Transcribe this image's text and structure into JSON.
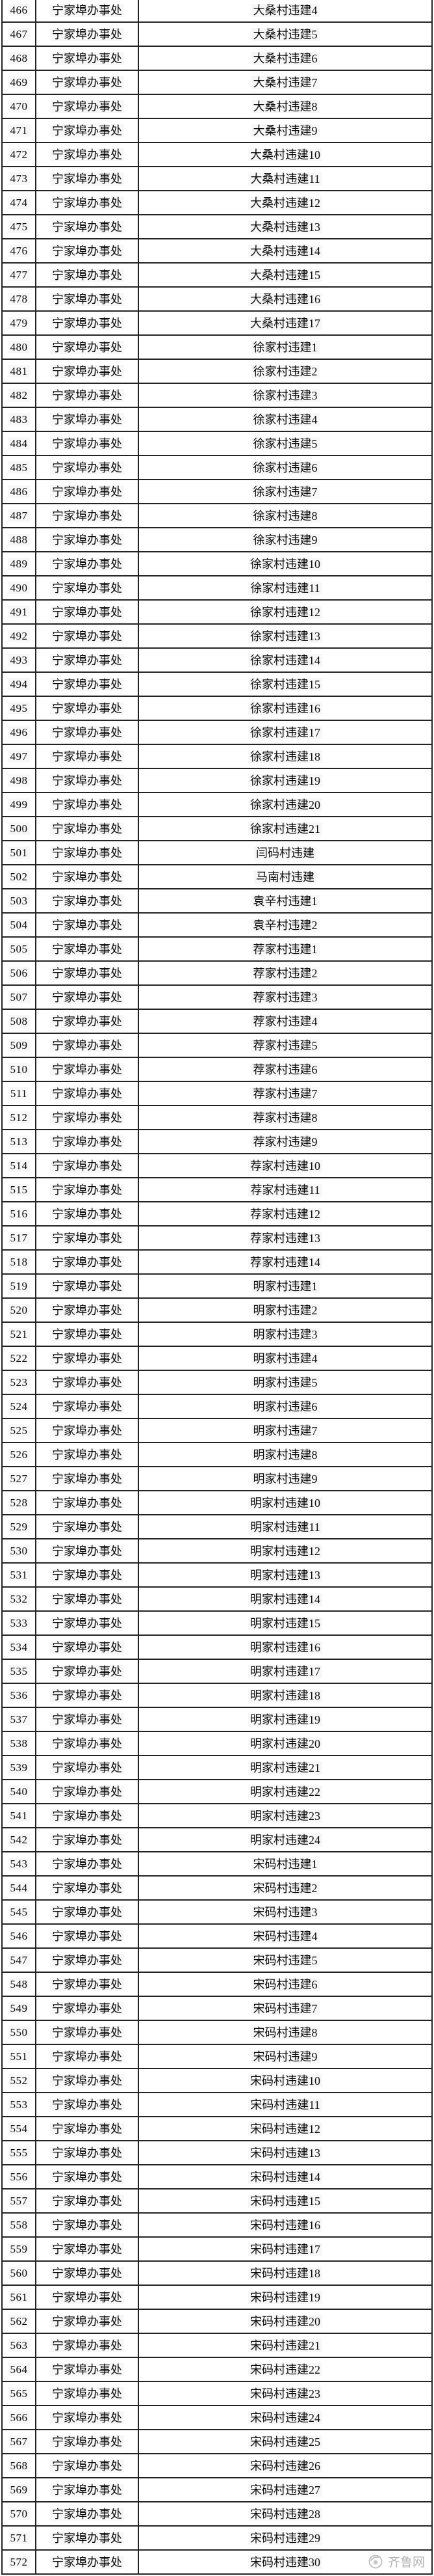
{
  "table": {
    "office_label": "宁家埠办事处",
    "rows": [
      {
        "n": "466",
        "office": "宁家埠办事处",
        "name": "大桑村违建4"
      },
      {
        "n": "467",
        "office": "宁家埠办事处",
        "name": "大桑村违建5"
      },
      {
        "n": "468",
        "office": "宁家埠办事处",
        "name": "大桑村违建6"
      },
      {
        "n": "469",
        "office": "宁家埠办事处",
        "name": "大桑村违建7"
      },
      {
        "n": "470",
        "office": "宁家埠办事处",
        "name": "大桑村违建8"
      },
      {
        "n": "471",
        "office": "宁家埠办事处",
        "name": "大桑村违建9"
      },
      {
        "n": "472",
        "office": "宁家埠办事处",
        "name": "大桑村违建10"
      },
      {
        "n": "473",
        "office": "宁家埠办事处",
        "name": "大桑村违建11"
      },
      {
        "n": "474",
        "office": "宁家埠办事处",
        "name": "大桑村违建12"
      },
      {
        "n": "475",
        "office": "宁家埠办事处",
        "name": "大桑村违建13"
      },
      {
        "n": "476",
        "office": "宁家埠办事处",
        "name": "大桑村违建14"
      },
      {
        "n": "477",
        "office": "宁家埠办事处",
        "name": "大桑村违建15"
      },
      {
        "n": "478",
        "office": "宁家埠办事处",
        "name": "大桑村违建16"
      },
      {
        "n": "479",
        "office": "宁家埠办事处",
        "name": "大桑村违建17"
      },
      {
        "n": "480",
        "office": "宁家埠办事处",
        "name": "徐家村违建1"
      },
      {
        "n": "481",
        "office": "宁家埠办事处",
        "name": "徐家村违建2"
      },
      {
        "n": "482",
        "office": "宁家埠办事处",
        "name": "徐家村违建3"
      },
      {
        "n": "483",
        "office": "宁家埠办事处",
        "name": "徐家村违建4"
      },
      {
        "n": "484",
        "office": "宁家埠办事处",
        "name": "徐家村违建5"
      },
      {
        "n": "485",
        "office": "宁家埠办事处",
        "name": "徐家村违建6"
      },
      {
        "n": "486",
        "office": "宁家埠办事处",
        "name": "徐家村违建7"
      },
      {
        "n": "487",
        "office": "宁家埠办事处",
        "name": "徐家村违建8"
      },
      {
        "n": "488",
        "office": "宁家埠办事处",
        "name": "徐家村违建9"
      },
      {
        "n": "489",
        "office": "宁家埠办事处",
        "name": "徐家村违建10"
      },
      {
        "n": "490",
        "office": "宁家埠办事处",
        "name": "徐家村违建11"
      },
      {
        "n": "491",
        "office": "宁家埠办事处",
        "name": "徐家村违建12"
      },
      {
        "n": "492",
        "office": "宁家埠办事处",
        "name": "徐家村违建13"
      },
      {
        "n": "493",
        "office": "宁家埠办事处",
        "name": "徐家村违建14"
      },
      {
        "n": "494",
        "office": "宁家埠办事处",
        "name": "徐家村违建15"
      },
      {
        "n": "495",
        "office": "宁家埠办事处",
        "name": "徐家村违建16"
      },
      {
        "n": "496",
        "office": "宁家埠办事处",
        "name": "徐家村违建17"
      },
      {
        "n": "497",
        "office": "宁家埠办事处",
        "name": "徐家村违建18"
      },
      {
        "n": "498",
        "office": "宁家埠办事处",
        "name": "徐家村违建19"
      },
      {
        "n": "499",
        "office": "宁家埠办事处",
        "name": "徐家村违建20"
      },
      {
        "n": "500",
        "office": "宁家埠办事处",
        "name": "徐家村违建21"
      },
      {
        "n": "501",
        "office": "宁家埠办事处",
        "name": "闫码村违建"
      },
      {
        "n": "502",
        "office": "宁家埠办事处",
        "name": "马南村违建"
      },
      {
        "n": "503",
        "office": "宁家埠办事处",
        "name": "袁辛村违建1"
      },
      {
        "n": "504",
        "office": "宁家埠办事处",
        "name": "袁辛村违建2"
      },
      {
        "n": "505",
        "office": "宁家埠办事处",
        "name": "荐家村违建1"
      },
      {
        "n": "506",
        "office": "宁家埠办事处",
        "name": "荐家村违建2"
      },
      {
        "n": "507",
        "office": "宁家埠办事处",
        "name": "荐家村违建3"
      },
      {
        "n": "508",
        "office": "宁家埠办事处",
        "name": "荐家村违建4"
      },
      {
        "n": "509",
        "office": "宁家埠办事处",
        "name": "荐家村违建5"
      },
      {
        "n": "510",
        "office": "宁家埠办事处",
        "name": "荐家村违建6"
      },
      {
        "n": "511",
        "office": "宁家埠办事处",
        "name": "荐家村违建7"
      },
      {
        "n": "512",
        "office": "宁家埠办事处",
        "name": "荐家村违建8"
      },
      {
        "n": "513",
        "office": "宁家埠办事处",
        "name": "荐家村违建9"
      },
      {
        "n": "514",
        "office": "宁家埠办事处",
        "name": "荐家村违建10"
      },
      {
        "n": "515",
        "office": "宁家埠办事处",
        "name": "荐家村违建11"
      },
      {
        "n": "516",
        "office": "宁家埠办事处",
        "name": "荐家村违建12"
      },
      {
        "n": "517",
        "office": "宁家埠办事处",
        "name": "荐家村违建13"
      },
      {
        "n": "518",
        "office": "宁家埠办事处",
        "name": "荐家村违建14"
      },
      {
        "n": "519",
        "office": "宁家埠办事处",
        "name": "明家村违建1"
      },
      {
        "n": "520",
        "office": "宁家埠办事处",
        "name": "明家村违建2"
      },
      {
        "n": "521",
        "office": "宁家埠办事处",
        "name": "明家村违建3"
      },
      {
        "n": "522",
        "office": "宁家埠办事处",
        "name": "明家村违建4"
      },
      {
        "n": "523",
        "office": "宁家埠办事处",
        "name": "明家村违建5"
      },
      {
        "n": "524",
        "office": "宁家埠办事处",
        "name": "明家村违建6"
      },
      {
        "n": "525",
        "office": "宁家埠办事处",
        "name": "明家村违建7"
      },
      {
        "n": "526",
        "office": "宁家埠办事处",
        "name": "明家村违建8"
      },
      {
        "n": "527",
        "office": "宁家埠办事处",
        "name": "明家村违建9"
      },
      {
        "n": "528",
        "office": "宁家埠办事处",
        "name": "明家村违建10"
      },
      {
        "n": "529",
        "office": "宁家埠办事处",
        "name": "明家村违建11"
      },
      {
        "n": "530",
        "office": "宁家埠办事处",
        "name": "明家村违建12"
      },
      {
        "n": "531",
        "office": "宁家埠办事处",
        "name": "明家村违建13"
      },
      {
        "n": "532",
        "office": "宁家埠办事处",
        "name": "明家村违建14"
      },
      {
        "n": "533",
        "office": "宁家埠办事处",
        "name": "明家村违建15"
      },
      {
        "n": "534",
        "office": "宁家埠办事处",
        "name": "明家村违建16"
      },
      {
        "n": "535",
        "office": "宁家埠办事处",
        "name": "明家村违建17"
      },
      {
        "n": "536",
        "office": "宁家埠办事处",
        "name": "明家村违建18"
      },
      {
        "n": "537",
        "office": "宁家埠办事处",
        "name": "明家村违建19"
      },
      {
        "n": "538",
        "office": "宁家埠办事处",
        "name": "明家村违建20"
      },
      {
        "n": "539",
        "office": "宁家埠办事处",
        "name": "明家村违建21"
      },
      {
        "n": "540",
        "office": "宁家埠办事处",
        "name": "明家村违建22"
      },
      {
        "n": "541",
        "office": "宁家埠办事处",
        "name": "明家村违建23"
      },
      {
        "n": "542",
        "office": "宁家埠办事处",
        "name": "明家村违建24"
      },
      {
        "n": "543",
        "office": "宁家埠办事处",
        "name": "宋码村违建1"
      },
      {
        "n": "544",
        "office": "宁家埠办事处",
        "name": "宋码村违建2"
      },
      {
        "n": "545",
        "office": "宁家埠办事处",
        "name": "宋码村违建3"
      },
      {
        "n": "546",
        "office": "宁家埠办事处",
        "name": "宋码村违建4"
      },
      {
        "n": "547",
        "office": "宁家埠办事处",
        "name": "宋码村违建5"
      },
      {
        "n": "548",
        "office": "宁家埠办事处",
        "name": "宋码村违建6"
      },
      {
        "n": "549",
        "office": "宁家埠办事处",
        "name": "宋码村违建7"
      },
      {
        "n": "550",
        "office": "宁家埠办事处",
        "name": "宋码村违建8"
      },
      {
        "n": "551",
        "office": "宁家埠办事处",
        "name": "宋码村违建9"
      },
      {
        "n": "552",
        "office": "宁家埠办事处",
        "name": "宋码村违建10"
      },
      {
        "n": "553",
        "office": "宁家埠办事处",
        "name": "宋码村违建11"
      },
      {
        "n": "554",
        "office": "宁家埠办事处",
        "name": "宋码村违建12"
      },
      {
        "n": "555",
        "office": "宁家埠办事处",
        "name": "宋码村违建13"
      },
      {
        "n": "556",
        "office": "宁家埠办事处",
        "name": "宋码村违建14"
      },
      {
        "n": "557",
        "office": "宁家埠办事处",
        "name": "宋码村违建15"
      },
      {
        "n": "558",
        "office": "宁家埠办事处",
        "name": "宋码村违建16"
      },
      {
        "n": "559",
        "office": "宁家埠办事处",
        "name": "宋码村违建17"
      },
      {
        "n": "560",
        "office": "宁家埠办事处",
        "name": "宋码村违建18"
      },
      {
        "n": "561",
        "office": "宁家埠办事处",
        "name": "宋码村违建19"
      },
      {
        "n": "562",
        "office": "宁家埠办事处",
        "name": "宋码村违建20"
      },
      {
        "n": "563",
        "office": "宁家埠办事处",
        "name": "宋码村违建21"
      },
      {
        "n": "564",
        "office": "宁家埠办事处",
        "name": "宋码村违建22"
      },
      {
        "n": "565",
        "office": "宁家埠办事处",
        "name": "宋码村违建23"
      },
      {
        "n": "566",
        "office": "宁家埠办事处",
        "name": "宋码村违建24"
      },
      {
        "n": "567",
        "office": "宁家埠办事处",
        "name": "宋码村违建25"
      },
      {
        "n": "568",
        "office": "宁家埠办事处",
        "name": "宋码村违建26"
      },
      {
        "n": "569",
        "office": "宁家埠办事处",
        "name": "宋码村违建27"
      },
      {
        "n": "570",
        "office": "宁家埠办事处",
        "name": "宋码村违建28"
      },
      {
        "n": "571",
        "office": "宁家埠办事处",
        "name": "宋码村违建29"
      },
      {
        "n": "572",
        "office": "宁家埠办事处",
        "name": "宋码村违建30"
      }
    ]
  },
  "watermark": {
    "text": "齐鲁网",
    "icon": "qilu-logo-icon",
    "color": "#b4b4b4"
  },
  "colors": {
    "border": "#232323",
    "text": "#0b0b0b",
    "background": "#ffffff"
  }
}
